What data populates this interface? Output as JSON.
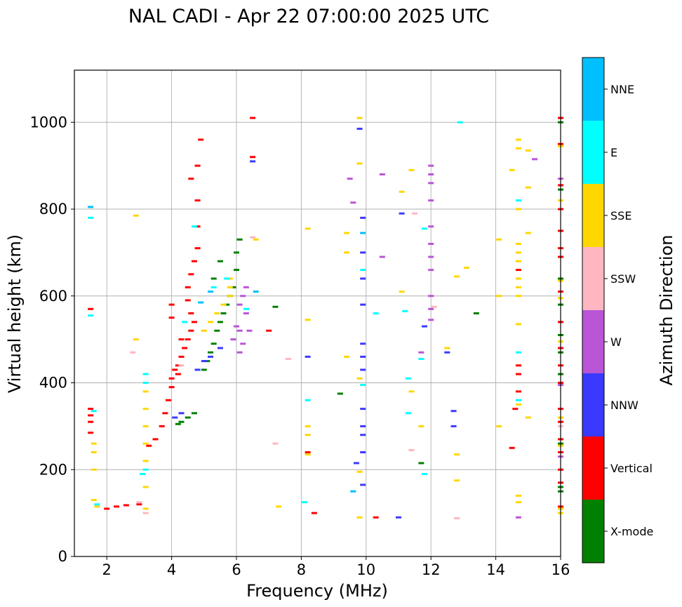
{
  "chart_data": {
    "type": "scatter",
    "title": "NAL CADI - Apr 22 07:00:00 2025 UTC",
    "xlabel": "Frequency (MHz)",
    "ylabel": "Virtual height (km)",
    "xlim": [
      1.0,
      16.0
    ],
    "ylim": [
      0,
      1120
    ],
    "xticks": [
      2,
      4,
      6,
      8,
      10,
      12,
      14,
      16
    ],
    "yticks": [
      0,
      200,
      400,
      600,
      800,
      1000
    ],
    "grid": true,
    "colorbar": {
      "label": "Azimuth Direction",
      "categories": [
        {
          "name": "X-mode",
          "color": "#008000"
        },
        {
          "name": "Vertical",
          "color": "#ff0000"
        },
        {
          "name": "NNW",
          "color": "#3a3aff"
        },
        {
          "name": "W",
          "color": "#b955d6"
        },
        {
          "name": "SSW",
          "color": "#ffb6c1"
        },
        {
          "name": "SSE",
          "color": "#ffd700"
        },
        {
          "name": "E",
          "color": "#00ffff"
        },
        {
          "name": "NNE",
          "color": "#00bfff"
        }
      ]
    },
    "series": [
      {
        "name": "X-mode",
        "color": "#008000",
        "points": [
          [
            4.2,
            305
          ],
          [
            4.3,
            310
          ],
          [
            4.5,
            320
          ],
          [
            4.7,
            330
          ],
          [
            5.0,
            430
          ],
          [
            5.1,
            450
          ],
          [
            5.2,
            470
          ],
          [
            5.3,
            490
          ],
          [
            5.4,
            520
          ],
          [
            5.5,
            540
          ],
          [
            5.6,
            560
          ],
          [
            5.7,
            580
          ],
          [
            5.8,
            600
          ],
          [
            5.9,
            620
          ],
          [
            6.0,
            660
          ],
          [
            6.0,
            700
          ],
          [
            6.1,
            730
          ],
          [
            5.5,
            680
          ],
          [
            5.3,
            640
          ],
          [
            7.2,
            575
          ],
          [
            9.2,
            375
          ],
          [
            11.7,
            215
          ],
          [
            13.4,
            560
          ],
          [
            16.0,
            150
          ],
          [
            16.0,
            160
          ],
          [
            16.0,
            260
          ],
          [
            16.0,
            420
          ],
          [
            16.0,
            470
          ],
          [
            16.0,
            510
          ],
          [
            16.0,
            580
          ],
          [
            16.0,
            640
          ],
          [
            16.0,
            845
          ],
          [
            16.0,
            1000
          ]
        ]
      },
      {
        "name": "Vertical",
        "color": "#ff0000",
        "points": [
          [
            1.5,
            340
          ],
          [
            1.5,
            325
          ],
          [
            1.5,
            310
          ],
          [
            1.5,
            285
          ],
          [
            1.5,
            570
          ],
          [
            2.0,
            110
          ],
          [
            2.3,
            115
          ],
          [
            2.6,
            118
          ],
          [
            3.0,
            120
          ],
          [
            3.3,
            255
          ],
          [
            3.5,
            270
          ],
          [
            3.7,
            300
          ],
          [
            3.8,
            330
          ],
          [
            3.9,
            360
          ],
          [
            4.0,
            390
          ],
          [
            4.0,
            410
          ],
          [
            4.1,
            430
          ],
          [
            4.2,
            440
          ],
          [
            4.3,
            460
          ],
          [
            4.4,
            480
          ],
          [
            4.5,
            500
          ],
          [
            4.6,
            520
          ],
          [
            4.7,
            540
          ],
          [
            4.6,
            560
          ],
          [
            4.5,
            590
          ],
          [
            4.5,
            620
          ],
          [
            4.6,
            650
          ],
          [
            4.7,
            680
          ],
          [
            4.8,
            710
          ],
          [
            4.8,
            760
          ],
          [
            4.8,
            820
          ],
          [
            4.8,
            900
          ],
          [
            4.9,
            960
          ],
          [
            4.6,
            870
          ],
          [
            4.0,
            580
          ],
          [
            4.0,
            550
          ],
          [
            4.3,
            500
          ],
          [
            4.2,
            420
          ],
          [
            6.5,
            1010
          ],
          [
            6.5,
            920
          ],
          [
            7.0,
            520
          ],
          [
            8.2,
            240
          ],
          [
            8.4,
            100
          ],
          [
            10.3,
            90
          ],
          [
            14.5,
            250
          ],
          [
            14.6,
            340
          ],
          [
            14.7,
            440
          ],
          [
            14.7,
            420
          ],
          [
            14.7,
            380
          ],
          [
            14.7,
            660
          ],
          [
            16.0,
            1010
          ],
          [
            16.0,
            950
          ],
          [
            16.0,
            855
          ],
          [
            16.0,
            800
          ],
          [
            16.0,
            750
          ],
          [
            16.0,
            710
          ],
          [
            16.0,
            690
          ],
          [
            16.0,
            610
          ],
          [
            16.0,
            540
          ],
          [
            16.0,
            480
          ],
          [
            16.0,
            440
          ],
          [
            16.0,
            400
          ],
          [
            16.0,
            340
          ],
          [
            16.0,
            310
          ],
          [
            16.0,
            270
          ],
          [
            16.0,
            240
          ],
          [
            16.0,
            200
          ],
          [
            16.0,
            170
          ],
          [
            16.0,
            115
          ]
        ]
      },
      {
        "name": "NNW",
        "color": "#3a3aff",
        "points": [
          [
            4.1,
            320
          ],
          [
            4.3,
            330
          ],
          [
            4.8,
            430
          ],
          [
            5.0,
            450
          ],
          [
            5.2,
            460
          ],
          [
            5.5,
            480
          ],
          [
            6.5,
            910
          ],
          [
            9.8,
            985
          ],
          [
            9.9,
            780
          ],
          [
            9.9,
            700
          ],
          [
            9.9,
            640
          ],
          [
            9.9,
            580
          ],
          [
            9.9,
            490
          ],
          [
            9.9,
            460
          ],
          [
            9.9,
            430
          ],
          [
            9.9,
            340
          ],
          [
            9.9,
            300
          ],
          [
            9.9,
            280
          ],
          [
            9.9,
            240
          ],
          [
            9.7,
            215
          ],
          [
            9.9,
            165
          ],
          [
            8.2,
            460
          ],
          [
            11.0,
            90
          ],
          [
            11.1,
            790
          ],
          [
            11.8,
            530
          ],
          [
            12.5,
            470
          ],
          [
            12.7,
            335
          ],
          [
            12.7,
            300
          ]
        ]
      },
      {
        "name": "W",
        "color": "#b955d6",
        "points": [
          [
            6.1,
            470
          ],
          [
            6.1,
            520
          ],
          [
            6.1,
            580
          ],
          [
            6.2,
            600
          ],
          [
            6.3,
            620
          ],
          [
            5.9,
            500
          ],
          [
            6.0,
            530
          ],
          [
            6.2,
            490
          ],
          [
            6.3,
            560
          ],
          [
            6.4,
            520
          ],
          [
            9.5,
            870
          ],
          [
            9.6,
            815
          ],
          [
            10.5,
            880
          ],
          [
            10.5,
            690
          ],
          [
            11.7,
            470
          ],
          [
            12.0,
            900
          ],
          [
            12.0,
            880
          ],
          [
            12.0,
            860
          ],
          [
            12.0,
            820
          ],
          [
            12.0,
            760
          ],
          [
            12.0,
            720
          ],
          [
            12.0,
            690
          ],
          [
            12.0,
            660
          ],
          [
            12.0,
            600
          ],
          [
            12.0,
            570
          ],
          [
            12.0,
            545
          ],
          [
            14.7,
            90
          ],
          [
            15.2,
            915
          ],
          [
            16.0,
            870
          ],
          [
            16.0,
            395
          ],
          [
            16.0,
            230
          ]
        ]
      },
      {
        "name": "SSW",
        "color": "#ffb6c1",
        "points": [
          [
            2.8,
            470
          ],
          [
            3.0,
            125
          ],
          [
            3.2,
            100
          ],
          [
            4.3,
            440
          ],
          [
            6.5,
            735
          ],
          [
            7.2,
            260
          ],
          [
            7.6,
            455
          ],
          [
            11.4,
            245
          ],
          [
            11.5,
            790
          ],
          [
            12.1,
            575
          ],
          [
            12.8,
            88
          ],
          [
            16.0,
            300
          ]
        ]
      },
      {
        "name": "SSE",
        "color": "#ffd700",
        "points": [
          [
            1.6,
            200
          ],
          [
            1.6,
            240
          ],
          [
            1.6,
            260
          ],
          [
            1.6,
            130
          ],
          [
            1.7,
            115
          ],
          [
            3.2,
            110
          ],
          [
            3.2,
            160
          ],
          [
            3.2,
            220
          ],
          [
            3.2,
            260
          ],
          [
            3.2,
            300
          ],
          [
            3.2,
            340
          ],
          [
            3.2,
            380
          ],
          [
            2.9,
            500
          ],
          [
            2.9,
            785
          ],
          [
            5.0,
            520
          ],
          [
            5.2,
            540
          ],
          [
            5.4,
            560
          ],
          [
            5.6,
            580
          ],
          [
            5.8,
            600
          ],
          [
            5.8,
            640
          ],
          [
            5.8,
            620
          ],
          [
            6.6,
            730
          ],
          [
            7.3,
            115
          ],
          [
            8.2,
            755
          ],
          [
            8.2,
            545
          ],
          [
            8.2,
            300
          ],
          [
            8.2,
            280
          ],
          [
            8.2,
            235
          ],
          [
            9.4,
            745
          ],
          [
            9.4,
            700
          ],
          [
            9.4,
            460
          ],
          [
            9.8,
            1010
          ],
          [
            9.8,
            905
          ],
          [
            9.8,
            410
          ],
          [
            9.8,
            195
          ],
          [
            9.8,
            90
          ],
          [
            11.1,
            840
          ],
          [
            11.1,
            610
          ],
          [
            11.4,
            890
          ],
          [
            11.4,
            380
          ],
          [
            11.7,
            300
          ],
          [
            12.5,
            480
          ],
          [
            12.8,
            645
          ],
          [
            12.8,
            235
          ],
          [
            12.8,
            175
          ],
          [
            13.1,
            665
          ],
          [
            14.1,
            730
          ],
          [
            14.1,
            600
          ],
          [
            14.1,
            300
          ],
          [
            14.5,
            890
          ],
          [
            14.7,
            960
          ],
          [
            14.7,
            940
          ],
          [
            14.7,
            800
          ],
          [
            14.7,
            720
          ],
          [
            14.7,
            700
          ],
          [
            14.7,
            680
          ],
          [
            14.7,
            640
          ],
          [
            14.7,
            620
          ],
          [
            14.7,
            600
          ],
          [
            14.7,
            535
          ],
          [
            14.7,
            350
          ],
          [
            14.7,
            140
          ],
          [
            14.7,
            125
          ],
          [
            15.0,
            935
          ],
          [
            15.0,
            850
          ],
          [
            15.0,
            745
          ],
          [
            15.0,
            320
          ],
          [
            16.0,
            945
          ],
          [
            16.0,
            820
          ],
          [
            16.0,
            635
          ],
          [
            16.0,
            595
          ],
          [
            16.0,
            495
          ],
          [
            16.0,
            320
          ],
          [
            16.0,
            255
          ],
          [
            16.0,
            110
          ],
          [
            16.0,
            100
          ]
        ]
      },
      {
        "name": "E",
        "color": "#00ffff",
        "points": [
          [
            1.5,
            780
          ],
          [
            1.5,
            555
          ],
          [
            1.6,
            335
          ],
          [
            1.7,
            120
          ],
          [
            3.2,
            420
          ],
          [
            3.2,
            400
          ],
          [
            3.2,
            200
          ],
          [
            3.1,
            190
          ],
          [
            4.4,
            540
          ],
          [
            4.7,
            760
          ],
          [
            5.3,
            620
          ],
          [
            5.7,
            640
          ],
          [
            6.3,
            570
          ],
          [
            8.2,
            360
          ],
          [
            8.1,
            125
          ],
          [
            9.9,
            660
          ],
          [
            9.9,
            395
          ],
          [
            10.3,
            560
          ],
          [
            11.2,
            565
          ],
          [
            11.3,
            410
          ],
          [
            11.3,
            330
          ],
          [
            11.8,
            755
          ],
          [
            11.8,
            190
          ],
          [
            11.7,
            455
          ],
          [
            12.9,
            1000
          ],
          [
            14.7,
            470
          ],
          [
            14.7,
            360
          ],
          [
            14.7,
            820
          ]
        ]
      },
      {
        "name": "NNE",
        "color": "#00bfff",
        "points": [
          [
            1.5,
            805
          ],
          [
            4.9,
            585
          ],
          [
            5.2,
            610
          ],
          [
            6.6,
            610
          ],
          [
            9.9,
            745
          ],
          [
            9.6,
            150
          ]
        ]
      }
    ]
  }
}
